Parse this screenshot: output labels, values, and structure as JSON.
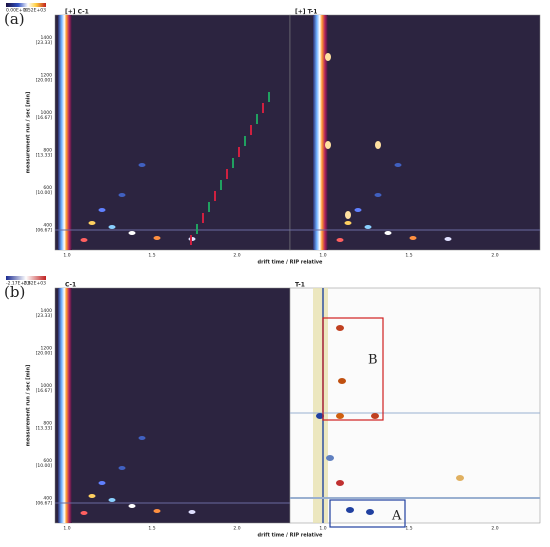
{
  "panels": [
    {
      "label": "(a)",
      "colorbar": {
        "min": "0.00E+00",
        "max": "3.52E+03"
      },
      "plots": [
        {
          "title": "[+] C-1"
        },
        {
          "title": "[+] T-1"
        }
      ],
      "y_axis_label": "measurement run / sec [min]",
      "x_axis_label": "drift time / RIP relative",
      "y_ticks": [
        {
          "sec": "1400",
          "min": "[23.33]"
        },
        {
          "sec": "1200",
          "min": "[20.00]"
        },
        {
          "sec": "1000",
          "min": "[16.67]"
        },
        {
          "sec": "800",
          "min": "[13.33]"
        },
        {
          "sec": "600",
          "min": "[10.00]"
        },
        {
          "sec": "400",
          "min": "[06.67]"
        }
      ],
      "x_ticks": [
        "1.0",
        "1.5",
        "2.0"
      ],
      "annotations": []
    },
    {
      "label": "(b)",
      "colorbar": {
        "min": "-2.17E+03",
        "max": "2.82E+03"
      },
      "plots": [
        {
          "title": "C-1"
        },
        {
          "title": "T-1"
        }
      ],
      "y_axis_label": "measurement run / sec [min]",
      "x_axis_label": "drift time / RIP relative",
      "y_ticks": [
        {
          "sec": "1400",
          "min": "[23.33]"
        },
        {
          "sec": "1200",
          "min": "[20.00]"
        },
        {
          "sec": "1000",
          "min": "[16.67]"
        },
        {
          "sec": "800",
          "min": "[13.33]"
        },
        {
          "sec": "600",
          "min": "[10.00]"
        },
        {
          "sec": "400",
          "min": "[06.67]"
        }
      ],
      "x_ticks": [
        "1.0",
        "1.5",
        "2.0"
      ],
      "annotations": [
        "B",
        "A"
      ]
    }
  ]
}
